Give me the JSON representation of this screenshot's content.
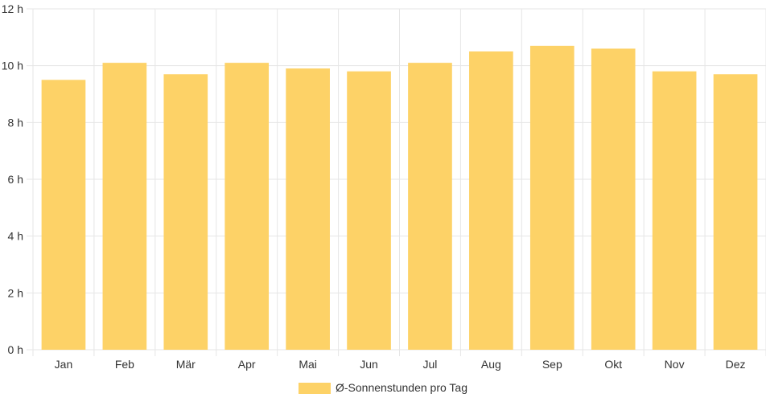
{
  "colors": {
    "bar": "#fdd267",
    "grid": "#e6e6e6",
    "text": "#333333"
  },
  "chart_data": {
    "type": "bar",
    "categories": [
      "Jan",
      "Feb",
      "Mär",
      "Apr",
      "Mai",
      "Jun",
      "Jul",
      "Aug",
      "Sep",
      "Okt",
      "Nov",
      "Dez"
    ],
    "series": [
      {
        "name": "Ø-Sonnenstunden pro Tag",
        "values": [
          9.5,
          10.1,
          9.7,
          10.1,
          9.9,
          9.8,
          10.1,
          10.5,
          10.7,
          10.6,
          9.8,
          9.7
        ]
      }
    ],
    "y_ticks": [
      "0 h",
      "2 h",
      "4 h",
      "6 h",
      "8 h",
      "10 h",
      "12 h"
    ],
    "ylim": [
      0,
      12
    ],
    "grid": true,
    "legend": "bottom-center"
  }
}
